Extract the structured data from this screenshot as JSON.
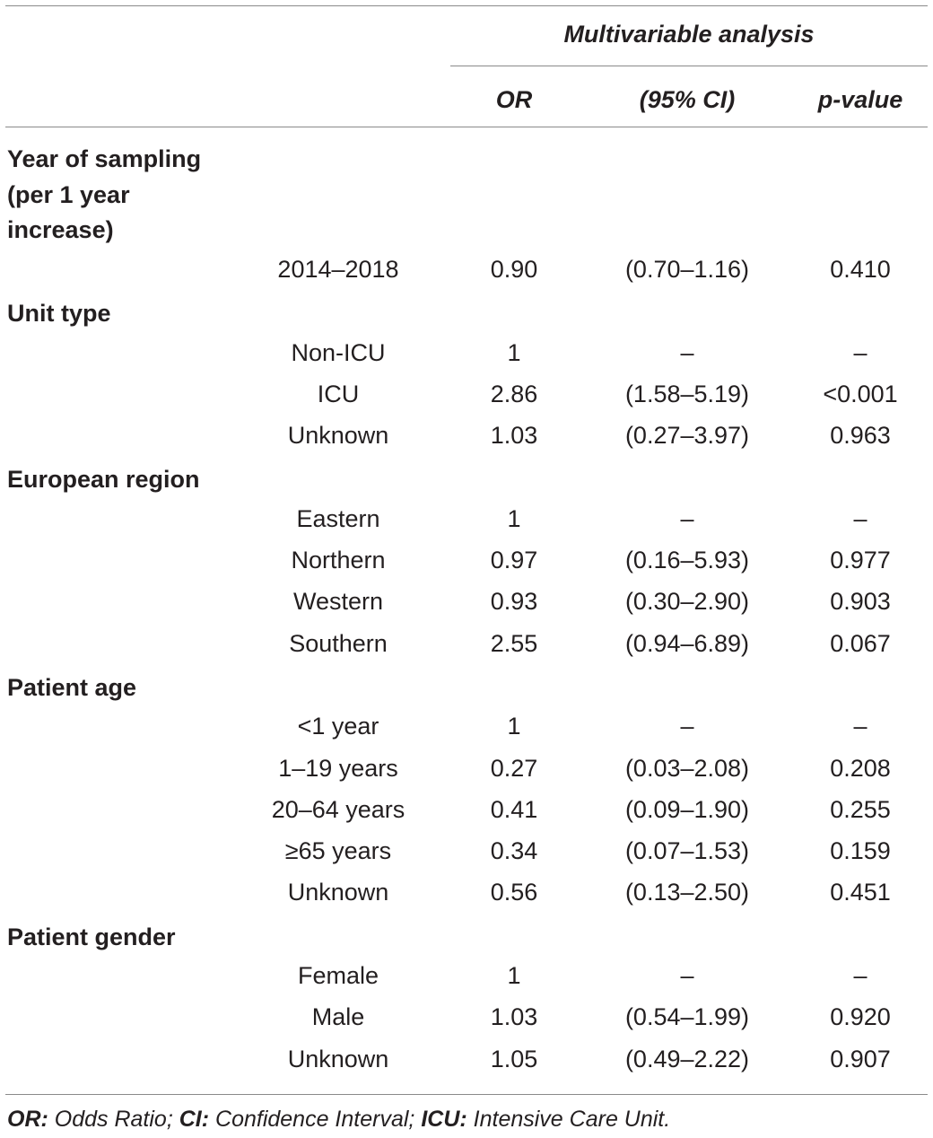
{
  "header": {
    "group_label": "Multivariable analysis",
    "col_or": "OR",
    "col_ci": "(95% CI)",
    "col_p": "p-value"
  },
  "sections": [
    {
      "title": "Year of sampling\n(per 1 year\nincrease)",
      "rows": [
        {
          "category": "2014–2018",
          "or": "0.90",
          "ci": "(0.70–1.16)",
          "p": "0.410"
        }
      ]
    },
    {
      "title": "Unit type",
      "rows": [
        {
          "category": "Non-ICU",
          "or": "1",
          "ci": "–",
          "p": "–"
        },
        {
          "category": "ICU",
          "or": "2.86",
          "ci": "(1.58–5.19)",
          "p": "<0.001"
        },
        {
          "category": "Unknown",
          "or": "1.03",
          "ci": "(0.27–3.97)",
          "p": "0.963"
        }
      ]
    },
    {
      "title": "European region",
      "rows": [
        {
          "category": "Eastern",
          "or": "1",
          "ci": "–",
          "p": "–"
        },
        {
          "category": "Northern",
          "or": "0.97",
          "ci": "(0.16–5.93)",
          "p": "0.977"
        },
        {
          "category": "Western",
          "or": "0.93",
          "ci": "(0.30–2.90)",
          "p": "0.903"
        },
        {
          "category": "Southern",
          "or": "2.55",
          "ci": "(0.94–6.89)",
          "p": "0.067"
        }
      ]
    },
    {
      "title": "Patient age",
      "rows": [
        {
          "category": "<1 year",
          "or": "1",
          "ci": "–",
          "p": "–"
        },
        {
          "category": "1–19 years",
          "or": "0.27",
          "ci": "(0.03–2.08)",
          "p": "0.208"
        },
        {
          "category": "20–64 years",
          "or": "0.41",
          "ci": "(0.09–1.90)",
          "p": "0.255"
        },
        {
          "category": "≥65 years",
          "or": "0.34",
          "ci": "(0.07–1.53)",
          "p": "0.159"
        },
        {
          "category": "Unknown",
          "or": "0.56",
          "ci": "(0.13–2.50)",
          "p": "0.451"
        }
      ]
    },
    {
      "title": "Patient gender",
      "rows": [
        {
          "category": "Female",
          "or": "1",
          "ci": "–",
          "p": "–"
        },
        {
          "category": "Male",
          "or": "1.03",
          "ci": "(0.54–1.99)",
          "p": "0.920"
        },
        {
          "category": "Unknown",
          "or": "1.05",
          "ci": "(0.49–2.22)",
          "p": "0.907"
        }
      ]
    }
  ],
  "footnote": {
    "or_abbr": "OR:",
    "or_text": " Odds Ratio; ",
    "ci_abbr": "CI:",
    "ci_text": " Confidence Interval; ",
    "icu_abbr": "ICU:",
    "icu_text": " Intensive Care Unit."
  }
}
